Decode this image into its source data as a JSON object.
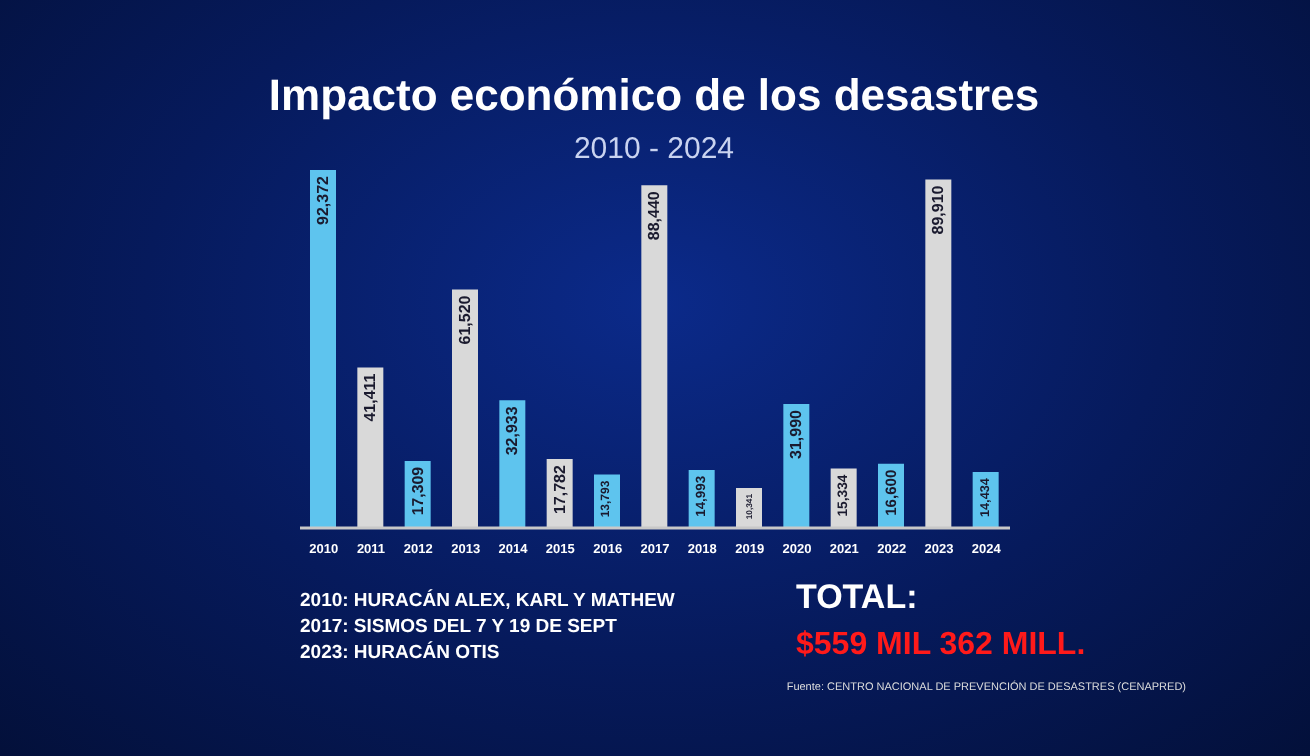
{
  "chart_data": {
    "type": "bar",
    "title": "Impacto económico de los desastres",
    "subtitle": "2010 - 2024",
    "categories": [
      "2010",
      "2011",
      "2012",
      "2013",
      "2014",
      "2015",
      "2016",
      "2017",
      "2018",
      "2019",
      "2020",
      "2021",
      "2022",
      "2023",
      "2024"
    ],
    "values": [
      92372,
      41411,
      17309,
      61520,
      32933,
      17782,
      13793,
      88440,
      14993,
      10341,
      31990,
      15334,
      16600,
      89910,
      14434
    ],
    "value_labels": [
      "92,372",
      "41,411",
      "17,309",
      "61,520",
      "32,933",
      "17,782",
      "13,793",
      "88,440",
      "14,993",
      "10,341",
      "31,990",
      "15,334",
      "16,600",
      "89,910",
      "14,434"
    ],
    "colors": [
      "#5ec4ee",
      "#d9d9d9",
      "#5ec4ee",
      "#d9d9d9",
      "#5ec4ee",
      "#d9d9d9",
      "#5ec4ee",
      "#d9d9d9",
      "#5ec4ee",
      "#d9d9d9",
      "#5ec4ee",
      "#d9d9d9",
      "#5ec4ee",
      "#d9d9d9",
      "#5ec4ee"
    ],
    "annotations": [
      "2010: HURACÁN ALEX, KARL Y MATHEW",
      "2017: SISMOS DEL 7 Y 19 DE SEPT",
      "2023: HURACÁN OTIS",
      "TOTAL:",
      "$559 MIL 362 MILL.",
      "Fuente: CENTRO NACIONAL DE PREVENCIÓN DE DESASTRES (CENAPRED)"
    ],
    "grid": false,
    "legend": false
  }
}
